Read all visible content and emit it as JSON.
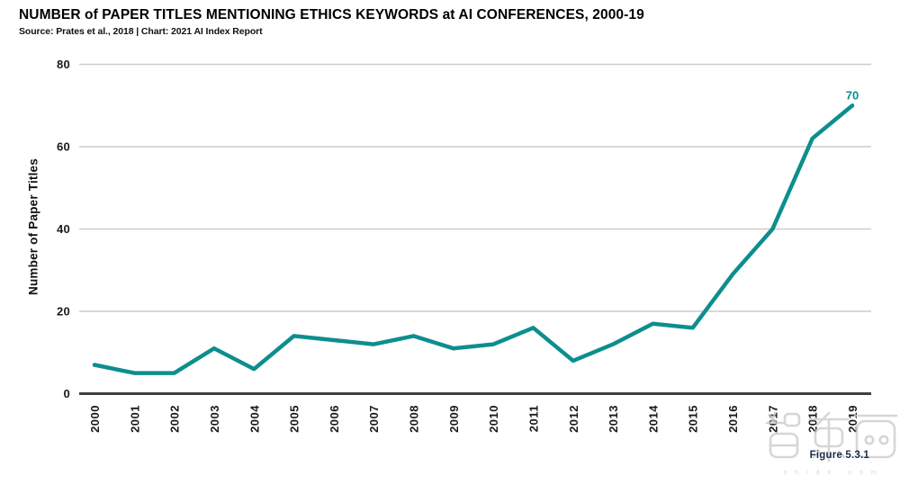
{
  "header": {
    "title": "NUMBER of PAPER TITLES MENTIONING ETHICS KEYWORDS at AI CONFERENCES, 2000-19",
    "source": "Source: Prates et al., 2018 | Chart: 2021 AI Index Report"
  },
  "figure_label": "Figure 5.3.1",
  "watermark": {
    "text": "z h i d x . c o m"
  },
  "colors": {
    "accent": "#0d8e8e",
    "grid": "#cccccc",
    "axis": "#3f3f3f",
    "tick_text": "#1a1a1a",
    "figure_label": "#1b2b4b",
    "watermark": "#cdcdcd"
  },
  "chart_data": {
    "type": "line",
    "title": "NUMBER of PAPER TITLES MENTIONING ETHICS KEYWORDS at AI CONFERENCES, 2000-19",
    "subtitle": "Source: Prates et al., 2018 | Chart: 2021 AI Index Report",
    "categories": [
      "2000",
      "2001",
      "2002",
      "2003",
      "2004",
      "2005",
      "2006",
      "2007",
      "2008",
      "2009",
      "2010",
      "2011",
      "2012",
      "2013",
      "2014",
      "2015",
      "2016",
      "2017",
      "2018",
      "2019"
    ],
    "series": [
      {
        "name": "Number of Paper Titles",
        "values": [
          7,
          5,
          5,
          11,
          6,
          14,
          13,
          12,
          14,
          11,
          12,
          16,
          8,
          12,
          17,
          16,
          29,
          40,
          62,
          70
        ]
      }
    ],
    "xlabel": "",
    "ylabel": "Number of Paper Titles",
    "ylim": [
      0,
      80
    ],
    "yticks": [
      0,
      20,
      40,
      60,
      80
    ],
    "grid": "horizontal",
    "legend": "none",
    "end_label": "70",
    "line_color": "#0d8e8e"
  }
}
